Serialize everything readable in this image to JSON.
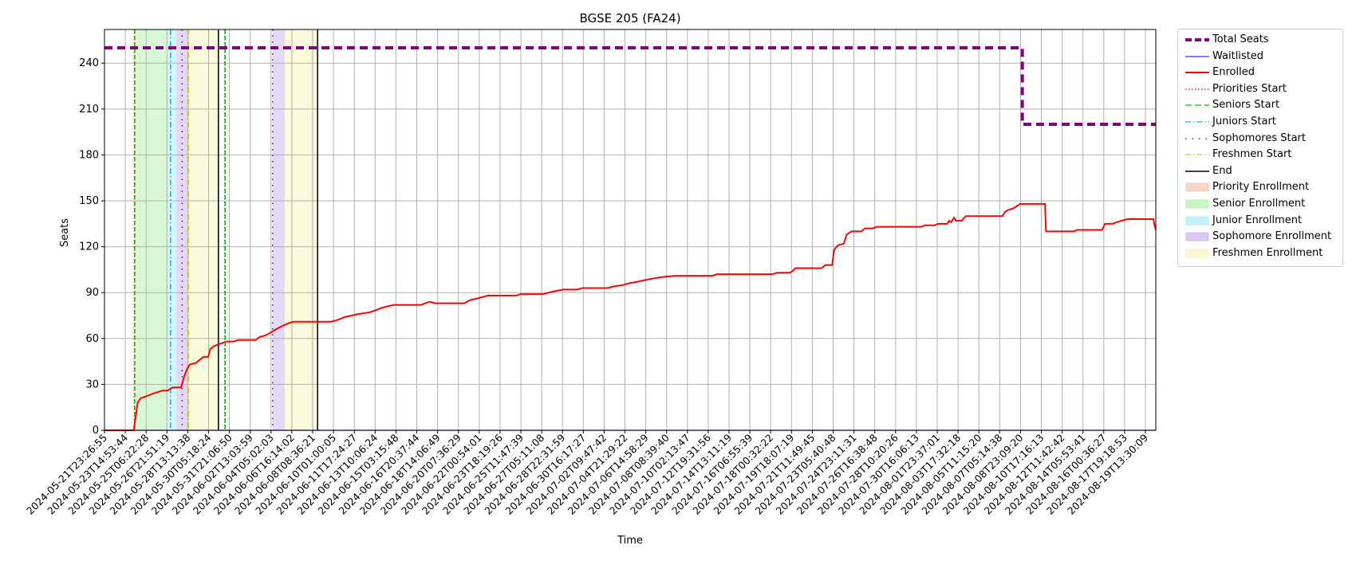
{
  "chart_data": {
    "type": "line",
    "title": "BGSE 205 (FA24)",
    "xlabel": "Time",
    "ylabel": "Seats",
    "x_range": [
      "2024-05-21T23:26:55",
      "2024-08-20T13:00:00"
    ],
    "ylim": [
      0,
      262
    ],
    "y_ticks": [
      0,
      30,
      60,
      90,
      120,
      150,
      180,
      210,
      240
    ],
    "x_tick_labels": [
      "2024-05-21T23:26:55",
      "2024-05-23T14:53:44",
      "2024-05-25T06:22:28",
      "2024-05-26T21:51:19",
      "2024-05-28T13:13:38",
      "2024-05-30T05:18:24",
      "2024-05-31T21:06:50",
      "2024-06-02T13:03:59",
      "2024-06-04T05:02:03",
      "2024-06-06T16:14:02",
      "2024-06-08T08:36:21",
      "2024-06-10T01:00:05",
      "2024-06-11T17:24:27",
      "2024-06-13T10:06:24",
      "2024-06-15T03:15:48",
      "2024-06-16T20:37:44",
      "2024-06-18T14:06:49",
      "2024-06-20T07:36:29",
      "2024-06-22T00:54:01",
      "2024-06-23T18:19:26",
      "2024-06-25T11:47:39",
      "2024-06-27T05:11:08",
      "2024-06-28T22:31:59",
      "2024-06-30T16:17:27",
      "2024-07-02T09:47:42",
      "2024-07-04T21:29:22",
      "2024-07-06T14:58:29",
      "2024-07-08T08:39:40",
      "2024-07-10T02:13:47",
      "2024-07-12T19:31:56",
      "2024-07-14T13:11:19",
      "2024-07-16T06:55:39",
      "2024-07-18T00:32:22",
      "2024-07-19T18:07:19",
      "2024-07-21T11:49:45",
      "2024-07-23T05:40:48",
      "2024-07-24T23:11:31",
      "2024-07-26T16:38:48",
      "2024-07-28T10:20:26",
      "2024-07-30T16:06:13",
      "2024-08-01T23:37:01",
      "2024-08-03T17:32:18",
      "2024-08-05T11:15:20",
      "2024-08-07T05:14:38",
      "2024-08-08T23:09:20",
      "2024-08-10T17:16:13",
      "2024-08-12T11:42:42",
      "2024-08-14T05:53:41",
      "2024-08-16T00:36:27",
      "2024-08-17T19:18:53",
      "2024-08-19T13:30:09"
    ],
    "grid": true,
    "legend_position": "outside-right",
    "legend": [
      {
        "label": "Total Seats",
        "kind": "line",
        "color": "#800080",
        "dash": "dashed",
        "width": 4
      },
      {
        "label": "Waitlisted",
        "kind": "line",
        "color": "#0000ff",
        "dash": "solid",
        "width": 1
      },
      {
        "label": "Enrolled",
        "kind": "line",
        "color": "#ff0000",
        "dash": "solid",
        "width": 2
      },
      {
        "label": "Priorities Start",
        "kind": "line",
        "color": "#ff0000",
        "dash": "dotted",
        "width": 1.3
      },
      {
        "label": "Seniors Start",
        "kind": "line",
        "color": "#00bb00",
        "dash": "dashed",
        "width": 1.3
      },
      {
        "label": "Juniors Start",
        "kind": "line",
        "color": "#00bfbf",
        "dash": "dashdot",
        "width": 1.3
      },
      {
        "label": "Sophomores Start",
        "kind": "line",
        "color": "#5500cc",
        "dash": "loosedot",
        "width": 1.3
      },
      {
        "label": "Freshmen Start",
        "kind": "line",
        "color": "#cccc00",
        "dash": "dashdot",
        "width": 1.3
      },
      {
        "label": "End",
        "kind": "line",
        "color": "#000000",
        "dash": "solid",
        "width": 1.5
      },
      {
        "label": "Priority Enrollment",
        "kind": "patch",
        "color": "#f4c8b8"
      },
      {
        "label": "Senior Enrollment",
        "kind": "patch",
        "color": "#b8f0b0"
      },
      {
        "label": "Junior Enrollment",
        "kind": "patch",
        "color": "#b0eef4"
      },
      {
        "label": "Sophomore Enrollment",
        "kind": "patch",
        "color": "#cdb8f0"
      },
      {
        "label": "Freshmen Enrollment",
        "kind": "patch",
        "color": "#f4f4c0"
      }
    ],
    "spans": [
      {
        "name": "senior-enrollment-1",
        "start": "2024-05-24T14:00:00",
        "end": "2024-05-27T10:00:00",
        "color": "#b8f0b0"
      },
      {
        "name": "junior-enrollment-1",
        "start": "2024-05-27T10:00:00",
        "end": "2024-05-28T04:00:00",
        "color": "#b0eef4"
      },
      {
        "name": "sophomore-enrollment-1",
        "start": "2024-05-28T04:00:00",
        "end": "2024-05-29T05:00:00",
        "color": "#cdb8f0"
      },
      {
        "name": "freshmen-enrollment-1",
        "start": "2024-05-29T05:00:00",
        "end": "2024-05-31T19:00:00",
        "color": "#f4f4c0"
      },
      {
        "name": "sophomore-enrollment-2",
        "start": "2024-06-05T11:00:00",
        "end": "2024-06-06T12:00:00",
        "color": "#cdb8f0"
      },
      {
        "name": "freshmen-enrollment-2",
        "start": "2024-06-06T12:00:00",
        "end": "2024-06-09T08:00:00",
        "color": "#f4f4c0"
      }
    ],
    "vlines": [
      {
        "name": "priorities-start-1",
        "t": "2024-05-24T13:00:00",
        "color": "#ff0000",
        "dash": "1.5,2.5",
        "width": 1.3
      },
      {
        "name": "seniors-start-1",
        "t": "2024-05-24T14:00:00",
        "color": "#00bb00",
        "dash": "5,3",
        "width": 1.5
      },
      {
        "name": "juniors-start-1",
        "t": "2024-05-27T16:00:00",
        "color": "#00bfbf",
        "dash": "7,3,1.5,3",
        "width": 1.5
      },
      {
        "name": "sophomores-start-1",
        "t": "2024-05-28T16:00:00",
        "color": "#5500cc",
        "dash": "1.5,6",
        "width": 1.5
      },
      {
        "name": "freshmen-start-1",
        "t": "2024-05-29T05:00:00",
        "color": "#cccc00",
        "dash": "7,3,1.5,3",
        "width": 1.3
      },
      {
        "name": "end-1",
        "t": "2024-05-31T19:00:00",
        "color": "#000000",
        "dash": "",
        "width": 1.5
      },
      {
        "name": "priorities-start-2",
        "t": "2024-06-01T08:00:00",
        "color": "#ff0000",
        "dash": "1.5,2.5",
        "width": 1.3
      },
      {
        "name": "seniors-start-2",
        "t": "2024-06-01T09:00:00",
        "color": "#00bb00",
        "dash": "5,3",
        "width": 1.5
      },
      {
        "name": "sophomores-start-2",
        "t": "2024-06-05T11:00:00",
        "color": "#5500cc",
        "dash": "1.5,6",
        "width": 1.5
      },
      {
        "name": "end-2",
        "t": "2024-06-09T08:00:00",
        "color": "#000000",
        "dash": "",
        "width": 1.5
      }
    ],
    "series": [
      {
        "name": "Total Seats",
        "color": "#800080",
        "dash": "10,6",
        "width": 4,
        "points": [
          [
            "2024-05-21T23:26:55",
            250
          ],
          [
            "2024-08-09T01:00:00",
            250
          ],
          [
            "2024-08-09T01:00:00",
            200
          ],
          [
            "2024-08-20T13:00:00",
            200
          ]
        ]
      },
      {
        "name": "Waitlisted",
        "color": "#0000ff",
        "dash": "",
        "width": 1.3,
        "points": [
          [
            "2024-05-21T23:26:55",
            0
          ],
          [
            "2024-08-20T13:00:00",
            0
          ]
        ]
      },
      {
        "name": "Enrolled",
        "color": "#ff0000",
        "dash": "",
        "width": 2,
        "points": [
          [
            "2024-05-21T23:26:55",
            0
          ],
          [
            "2024-05-24T12:00:00",
            0
          ],
          [
            "2024-05-24T16:00:00",
            9
          ],
          [
            "2024-05-24T20:00:00",
            18
          ],
          [
            "2024-05-25T02:00:00",
            21
          ],
          [
            "2024-05-25T12:00:00",
            22
          ],
          [
            "2024-05-25T20:00:00",
            23
          ],
          [
            "2024-05-26T04:00:00",
            24
          ],
          [
            "2024-05-26T14:00:00",
            25
          ],
          [
            "2024-05-27T00:00:00",
            26
          ],
          [
            "2024-05-27T10:00:00",
            26
          ],
          [
            "2024-05-27T20:00:00",
            28
          ],
          [
            "2024-05-28T14:00:00",
            28
          ],
          [
            "2024-05-28T20:00:00",
            35
          ],
          [
            "2024-05-29T02:00:00",
            40
          ],
          [
            "2024-05-29T08:00:00",
            43
          ],
          [
            "2024-05-29T20:00:00",
            44
          ],
          [
            "2024-05-30T04:00:00",
            46
          ],
          [
            "2024-05-30T12:00:00",
            48
          ],
          [
            "2024-05-30T22:00:00",
            48
          ],
          [
            "2024-05-31T02:00:00",
            53
          ],
          [
            "2024-05-31T10:00:00",
            55
          ],
          [
            "2024-05-31T18:00:00",
            56
          ],
          [
            "2024-06-01T02:00:00",
            57
          ],
          [
            "2024-06-01T12:00:00",
            58
          ],
          [
            "2024-06-02T02:00:00",
            58
          ],
          [
            "2024-06-02T12:00:00",
            59
          ],
          [
            "2024-06-04T00:00:00",
            59
          ],
          [
            "2024-06-04T08:00:00",
            61
          ],
          [
            "2024-06-04T20:00:00",
            62
          ],
          [
            "2024-06-05T08:00:00",
            64
          ],
          [
            "2024-06-05T18:00:00",
            66
          ],
          [
            "2024-06-06T06:00:00",
            68
          ],
          [
            "2024-06-06T20:00:00",
            70
          ],
          [
            "2024-06-07T06:00:00",
            71
          ],
          [
            "2024-06-10T12:00:00",
            71
          ],
          [
            "2024-06-11T00:00:00",
            72
          ],
          [
            "2024-06-11T16:00:00",
            74
          ],
          [
            "2024-06-12T06:00:00",
            75
          ],
          [
            "2024-06-12T20:00:00",
            76
          ],
          [
            "2024-06-13T18:00:00",
            77
          ],
          [
            "2024-06-14T04:00:00",
            78
          ],
          [
            "2024-06-14T20:00:00",
            80
          ],
          [
            "2024-06-15T08:00:00",
            81
          ],
          [
            "2024-06-15T22:00:00",
            82
          ],
          [
            "2024-06-18T06:00:00",
            82
          ],
          [
            "2024-06-18T14:00:00",
            83
          ],
          [
            "2024-06-19T00:00:00",
            84
          ],
          [
            "2024-06-19T12:00:00",
            83
          ],
          [
            "2024-06-22T00:00:00",
            83
          ],
          [
            "2024-06-22T10:00:00",
            85
          ],
          [
            "2024-06-23T00:00:00",
            86
          ],
          [
            "2024-06-23T12:00:00",
            87
          ],
          [
            "2024-06-24T00:00:00",
            88
          ],
          [
            "2024-06-26T10:00:00",
            88
          ],
          [
            "2024-06-26T20:00:00",
            89
          ],
          [
            "2024-06-28T18:00:00",
            89
          ],
          [
            "2024-06-29T06:00:00",
            90
          ],
          [
            "2024-06-29T20:00:00",
            91
          ],
          [
            "2024-06-30T12:00:00",
            92
          ],
          [
            "2024-07-01T16:00:00",
            92
          ],
          [
            "2024-07-02T04:00:00",
            93
          ],
          [
            "2024-07-04T08:00:00",
            93
          ],
          [
            "2024-07-04T20:00:00",
            94
          ],
          [
            "2024-07-05T16:00:00",
            95
          ],
          [
            "2024-07-06T02:00:00",
            96
          ],
          [
            "2024-07-06T20:00:00",
            97
          ],
          [
            "2024-07-07T10:00:00",
            98
          ],
          [
            "2024-07-08T02:00:00",
            99
          ],
          [
            "2024-07-08T20:00:00",
            100
          ],
          [
            "2024-07-10T02:00:00",
            101
          ],
          [
            "2024-07-13T08:00:00",
            101
          ],
          [
            "2024-07-13T18:00:00",
            102
          ],
          [
            "2024-07-18T12:00:00",
            102
          ],
          [
            "2024-07-18T22:00:00",
            103
          ],
          [
            "2024-07-20T00:00:00",
            103
          ],
          [
            "2024-07-20T06:00:00",
            104
          ],
          [
            "2024-07-20T12:00:00",
            106
          ],
          [
            "2024-07-22T18:00:00",
            106
          ],
          [
            "2024-07-23T02:00:00",
            108
          ],
          [
            "2024-07-23T16:00:00",
            108
          ],
          [
            "2024-07-23T20:00:00",
            118
          ],
          [
            "2024-07-24T04:00:00",
            121
          ],
          [
            "2024-07-24T16:00:00",
            122
          ],
          [
            "2024-07-24T22:00:00",
            128
          ],
          [
            "2024-07-25T08:00:00",
            130
          ],
          [
            "2024-07-26T04:00:00",
            130
          ],
          [
            "2024-07-26T12:00:00",
            132
          ],
          [
            "2024-07-27T04:00:00",
            132
          ],
          [
            "2024-07-27T12:00:00",
            133
          ],
          [
            "2024-07-31T08:00:00",
            133
          ],
          [
            "2024-07-31T16:00:00",
            134
          ],
          [
            "2024-08-01T12:00:00",
            134
          ],
          [
            "2024-08-01T18:00:00",
            135
          ],
          [
            "2024-08-02T14:00:00",
            135
          ],
          [
            "2024-08-02T18:00:00",
            137
          ],
          [
            "2024-08-02T22:00:00",
            136
          ],
          [
            "2024-08-03T04:00:00",
            139
          ],
          [
            "2024-08-03T08:00:00",
            137
          ],
          [
            "2024-08-03T20:00:00",
            137
          ],
          [
            "2024-08-04T04:00:00",
            140
          ],
          [
            "2024-08-07T08:00:00",
            140
          ],
          [
            "2024-08-07T14:00:00",
            143
          ],
          [
            "2024-08-07T20:00:00",
            144
          ],
          [
            "2024-08-08T06:00:00",
            145
          ],
          [
            "2024-08-08T16:00:00",
            147
          ],
          [
            "2024-08-08T20:00:00",
            148
          ],
          [
            "2024-08-11T00:00:00",
            148
          ],
          [
            "2024-08-11T02:00:00",
            130
          ],
          [
            "2024-08-13T12:00:00",
            130
          ],
          [
            "2024-08-13T18:00:00",
            131
          ],
          [
            "2024-08-15T22:00:00",
            131
          ],
          [
            "2024-08-16T04:00:00",
            135
          ],
          [
            "2024-08-16T20:00:00",
            135
          ],
          [
            "2024-08-17T04:00:00",
            136
          ],
          [
            "2024-08-17T14:00:00",
            137
          ],
          [
            "2024-08-18T02:00:00",
            138
          ],
          [
            "2024-08-20T08:00:00",
            138
          ],
          [
            "2024-08-20T11:00:00",
            133
          ],
          [
            "2024-08-20T13:00:00",
            131
          ]
        ]
      }
    ]
  }
}
